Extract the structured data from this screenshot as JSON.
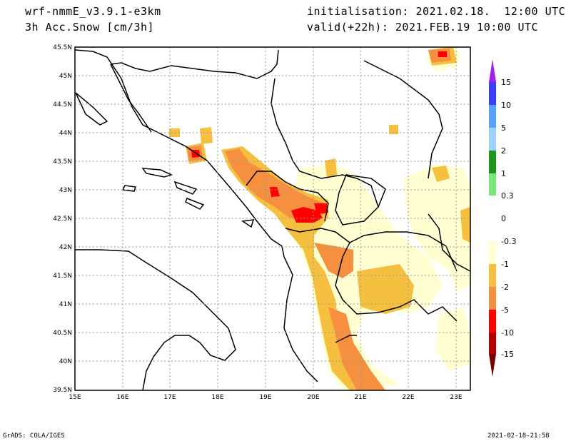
{
  "header": {
    "model": "wrf-nmmE_v3.9.1-e3km",
    "field": "3h Acc.Snow [cm/3h]",
    "init": "initialisation: 2021.02.18.  12:00 UTC",
    "valid": "valid(+22h): 2021.FEB.19 10:00 UTC"
  },
  "map": {
    "lat_labels": [
      "45.5N",
      "45N",
      "44.5N",
      "44N",
      "43.5N",
      "43N",
      "42.5N",
      "42N",
      "41.5N",
      "41N",
      "40.5N",
      "40N",
      "39.5N"
    ],
    "lon_labels": [
      "15E",
      "16E",
      "17E",
      "18E",
      "19E",
      "20E",
      "21E",
      "22E",
      "23E"
    ],
    "lat_range": [
      39.5,
      45.5
    ],
    "lon_range": [
      15,
      23.3
    ]
  },
  "colorbar": {
    "labels": [
      "15",
      "10",
      "5",
      "2",
      "1",
      "0.3",
      "0",
      "-0.3",
      "-1",
      "-2",
      "-5",
      "-10",
      "-15"
    ],
    "colors": [
      "#a020f0",
      "#3c3cff",
      "#5aa0ff",
      "#a0d2ff",
      "#1e961e",
      "#78e678",
      "#ffffff",
      "#ffffd2",
      "#f5c040",
      "#f59040",
      "#ff0000",
      "#b40000",
      "#780000"
    ]
  },
  "footer": {
    "left": "GrADS: COLA/IGES",
    "right": "2021-02-18-21:58"
  }
}
